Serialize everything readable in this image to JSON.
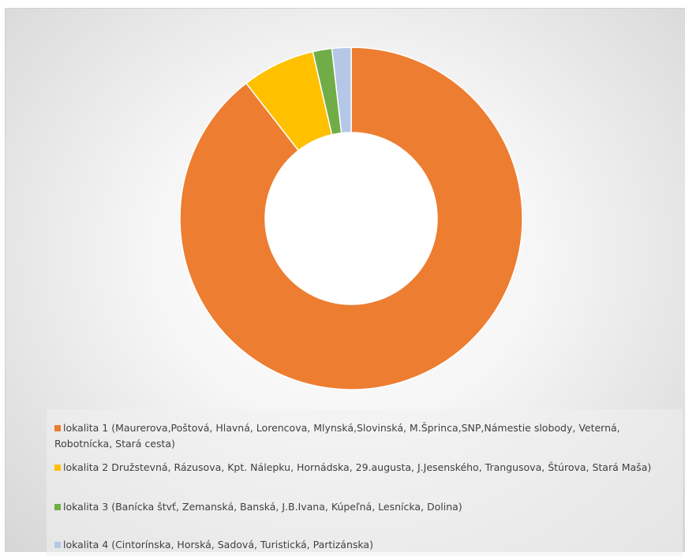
{
  "chart_data": {
    "type": "donut",
    "legend_position": "bottom",
    "series": [
      {
        "name": "lokalita 1 (Maurerova,Poštová, Hlavná, Lorencova, Mlynská,Slovinská, M.Šprinca,SNP,Námestie slobody, Veterná, Robotnícka, Stará cesta)",
        "value": 89.5,
        "color": "#ED7D31"
      },
      {
        "name": "lokalita 2 Družstevná, Rázusova, Kpt. Nálepku, Hornádska, 29.augusta, J.Jesenského, Trangusova, Štúrova, Stará Maša)",
        "value": 6.9,
        "color": "#FFC000"
      },
      {
        "name": "lokalita 3 (Banícka štvť, Zemanská, Banská, J.B.Ivana, Kúpeľná, Lesnícka, Dolina)",
        "value": 1.8,
        "color": "#70AD47"
      },
      {
        "name": "lokalita 4 (Cintorínska, Horská, Sadová, Turistická, Partizánska)",
        "value": 1.8,
        "color": "#B4C7E7"
      }
    ]
  }
}
